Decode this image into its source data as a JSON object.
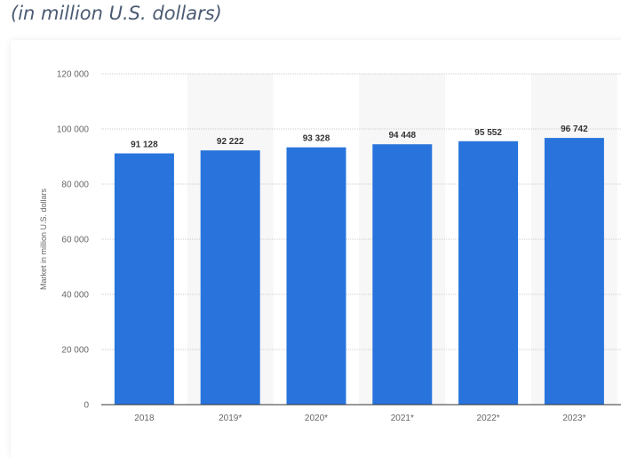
{
  "subtitle": "(in million U.S. dollars)",
  "chart_data": {
    "type": "bar",
    "categories": [
      "2018",
      "2019*",
      "2020*",
      "2021*",
      "2022*",
      "2023*"
    ],
    "values": [
      91128,
      92222,
      93328,
      94448,
      95552,
      96742
    ],
    "data_labels": [
      "91 128",
      "92 222",
      "93 328",
      "94 448",
      "95 552",
      "96 742"
    ],
    "xlabel": "",
    "ylabel": "Market in million U.S. dollars",
    "ylim": [
      0,
      120000
    ],
    "yticks": [
      0,
      20000,
      40000,
      60000,
      80000,
      100000,
      120000
    ],
    "ytick_labels": [
      "0",
      "20 000",
      "40 000",
      "60 000",
      "80 000",
      "100 000",
      "120 000"
    ],
    "grid": true,
    "bar_color": "#2874dc"
  }
}
